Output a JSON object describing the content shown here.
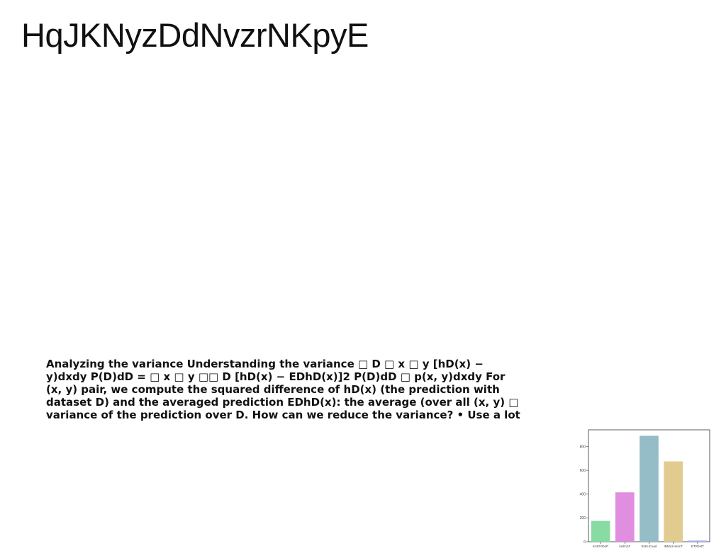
{
  "document": {
    "title": "HqJKNyzDdNvzrNKpyE",
    "body_lines": [
      "Analyzing the variance Understanding the variance □ D □ x □ y [hD(x) −",
      "y)dxdy P(D)dD = □ x □ y □□ D [hD(x) − EDhD(x)]2 P(D)dD □ p(x, y)dxdy For",
      "(x, y) pair, we compute the squared difference of hD(x) (the prediction with",
      "dataset D) and the averaged prediction EDhD(x): the average (over all (x, y) □",
      "variance of the prediction over D. How can we reduce the variance? • Use a lot"
    ]
  },
  "chart_data": {
    "type": "bar",
    "categories": [
      "KotOObnP",
      "kuEnJZ",
      "BzKuCxad",
      "IBMnzceHcT",
      "ETRbvtT"
    ],
    "values": [
      175,
      415,
      890,
      675,
      10
    ],
    "colors": [
      "#88dba3",
      "#e08ee0",
      "#95bdc7",
      "#e2cb8e",
      "#a9b4ef"
    ],
    "yticks": [
      0,
      200,
      400,
      600,
      800
    ],
    "ylim": [
      0,
      940
    ],
    "grid": false,
    "title": "",
    "xlabel": "",
    "ylabel": ""
  }
}
